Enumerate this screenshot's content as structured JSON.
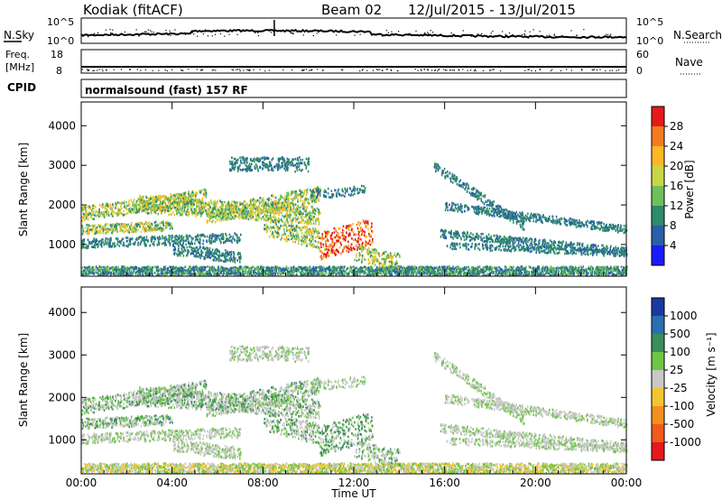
{
  "header": {
    "station": "Kodiak (fitACF)",
    "beam": "Beam 02",
    "date_range": "12/Jul/2015 - 13/Jul/2015"
  },
  "noise_panel": {
    "left_label": "N.Sky",
    "right_label": "N.Search",
    "ticks_left": [
      "10^5",
      "10^0"
    ],
    "ticks_right": [
      "10^5",
      "10^0"
    ]
  },
  "freq_panel": {
    "left_label_1": "Freq.",
    "left_label_2": "[MHz]",
    "right_label": "Nave",
    "ticks_left": [
      "18",
      "8"
    ],
    "ticks_right": [
      "60",
      "0"
    ]
  },
  "cpid": {
    "label": "CPID",
    "value": "normalsound (fast) 157 RF"
  },
  "chart_data": [
    {
      "type": "heatmap",
      "name": "power",
      "ylabel": "Slant Range [km]",
      "xlabel": "Time UT",
      "ylim": [
        200,
        4600
      ],
      "yticks": [
        "4000",
        "3000",
        "2000",
        "1000"
      ],
      "colorbar_label": "Power [dB]",
      "colorbar_ticks": [
        "28",
        "24",
        "20",
        "16",
        "12",
        "8",
        "4"
      ],
      "colorbar_colors": [
        "#e41a1c",
        "#f47a20",
        "#fdb827",
        "#c9d645",
        "#6fbf5a",
        "#2e8b6b",
        "#2a5fa8",
        "#1a1aff"
      ]
    },
    {
      "type": "heatmap",
      "name": "velocity",
      "ylabel": "Slant Range [km]",
      "xlabel": "Time UT",
      "ylim": [
        200,
        4600
      ],
      "yticks": [
        "4000",
        "3000",
        "2000",
        "1000"
      ],
      "colorbar_label": "Velocity [m s⁻¹]",
      "colorbar_ticks": [
        "1000",
        "500",
        "100",
        "25",
        "-25",
        "-100",
        "-500",
        "-1000"
      ],
      "colorbar_colors": [
        "#1a3a9f",
        "#2a6fb0",
        "#3c8d5c",
        "#6cc644",
        "#c8c8c8",
        "#f4c430",
        "#f29020",
        "#f05a1a",
        "#e41a1c"
      ]
    }
  ],
  "time_axis": {
    "label": "Time UT",
    "ticks": [
      "00:00",
      "04:00",
      "08:00",
      "12:00",
      "16:00",
      "20:00",
      "00:00"
    ]
  }
}
